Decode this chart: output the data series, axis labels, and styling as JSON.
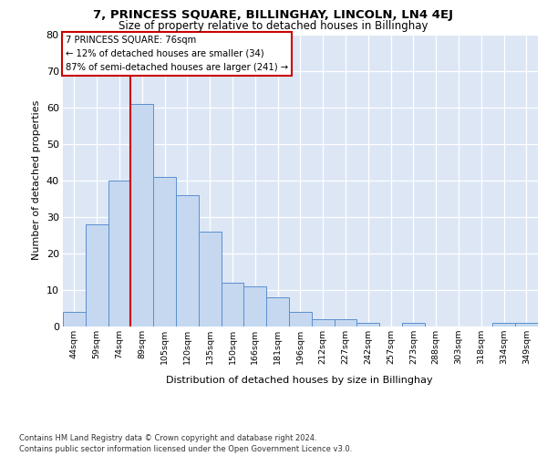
{
  "title": "7, PRINCESS SQUARE, BILLINGHAY, LINCOLN, LN4 4EJ",
  "subtitle": "Size of property relative to detached houses in Billinghay",
  "xlabel": "Distribution of detached houses by size in Billinghay",
  "ylabel": "Number of detached properties",
  "categories": [
    "44sqm",
    "59sqm",
    "74sqm",
    "89sqm",
    "105sqm",
    "120sqm",
    "135sqm",
    "150sqm",
    "166sqm",
    "181sqm",
    "196sqm",
    "212sqm",
    "227sqm",
    "242sqm",
    "257sqm",
    "273sqm",
    "288sqm",
    "303sqm",
    "318sqm",
    "334sqm",
    "349sqm"
  ],
  "values": [
    4,
    28,
    40,
    61,
    41,
    36,
    26,
    12,
    11,
    8,
    4,
    2,
    2,
    1,
    0,
    1,
    0,
    0,
    0,
    1,
    1
  ],
  "bar_color": "#c5d8f0",
  "bar_edge_color": "#5b8fcf",
  "vline_color": "#cc0000",
  "vline_index": 2.5,
  "annotation_line1": "7 PRINCESS SQUARE: 76sqm",
  "annotation_line2": "← 12% of detached houses are smaller (34)",
  "annotation_line3": "87% of semi-detached houses are larger (241) →",
  "annotation_box_color": "#ffffff",
  "annotation_box_edge": "#cc0000",
  "ylim": [
    0,
    80
  ],
  "yticks": [
    0,
    10,
    20,
    30,
    40,
    50,
    60,
    70,
    80
  ],
  "footer1": "Contains HM Land Registry data © Crown copyright and database right 2024.",
  "footer2": "Contains public sector information licensed under the Open Government Licence v3.0.",
  "background_color": "#dce6f5"
}
